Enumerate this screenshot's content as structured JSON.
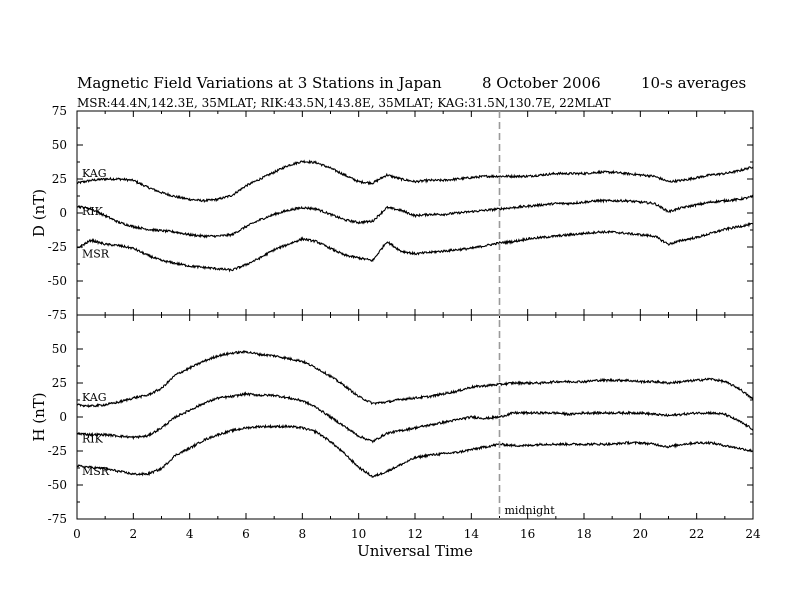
{
  "header": {
    "title": "Magnetic Field Variations at 3 Stations in Japan",
    "date": "8   October 2006",
    "averaging": "10-s averages",
    "subtitle": "MSR:44.4N,142.3E, 35MLAT;  RIK:43.5N,143.8E, 35MLAT;  KAG:31.5N,130.7E, 22MLAT"
  },
  "chart_data": [
    {
      "type": "line",
      "panel": "D",
      "ylabel": "D (nT)",
      "xlim": [
        0,
        24
      ],
      "ylim": [
        -75,
        75
      ],
      "yticks": [
        75,
        50,
        25,
        0,
        -25,
        -50,
        -75
      ],
      "series": [
        {
          "name": "KAG",
          "x": [
            0,
            0.5,
            1,
            1.5,
            2,
            2.5,
            3,
            3.5,
            4,
            4.5,
            5,
            5.5,
            6,
            6.5,
            7,
            7.5,
            8,
            8.5,
            9,
            9.5,
            10,
            10.5,
            11,
            11.5,
            12,
            12.5,
            13,
            13.5,
            14,
            14.5,
            15,
            15.5,
            16,
            16.5,
            17,
            17.5,
            18,
            18.5,
            19,
            19.5,
            20,
            20.5,
            21,
            21.5,
            22,
            22.5,
            23,
            23.5,
            24
          ],
          "values": [
            22,
            24,
            25,
            25,
            24,
            19,
            15,
            12,
            10,
            9,
            10,
            13,
            20,
            25,
            30,
            35,
            38,
            37,
            33,
            28,
            23,
            22,
            28,
            25,
            23,
            24,
            24,
            25,
            26,
            27,
            27,
            27,
            27,
            28,
            29,
            29,
            29,
            30,
            30,
            29,
            28,
            27,
            23,
            24,
            26,
            28,
            29,
            31,
            34
          ]
        },
        {
          "name": "RIK",
          "x": [
            0,
            0.5,
            1,
            1.5,
            2,
            2.5,
            3,
            3.5,
            4,
            4.5,
            5,
            5.5,
            6,
            6.5,
            7,
            7.5,
            8,
            8.5,
            9,
            9.5,
            10,
            10.5,
            11,
            11.5,
            12,
            12.5,
            13,
            13.5,
            14,
            14.5,
            15,
            15.5,
            16,
            16.5,
            17,
            17.5,
            18,
            18.5,
            19,
            19.5,
            20,
            20.5,
            21,
            21.5,
            22,
            22.5,
            23,
            23.5,
            24
          ],
          "values": [
            5,
            3,
            -2,
            -7,
            -10,
            -12,
            -13,
            -14,
            -16,
            -17,
            -17,
            -16,
            -10,
            -5,
            -1,
            2,
            4,
            3,
            -1,
            -5,
            -7,
            -6,
            4,
            2,
            -2,
            -1,
            -1,
            0,
            1,
            2,
            3,
            4,
            5,
            6,
            7,
            7,
            8,
            9,
            9,
            9,
            8,
            7,
            1,
            4,
            6,
            8,
            9,
            10,
            12
          ]
        },
        {
          "name": "MSR",
          "x": [
            0,
            0.5,
            1,
            1.5,
            2,
            2.5,
            3,
            3.5,
            4,
            4.5,
            5,
            5.5,
            6,
            6.5,
            7,
            7.5,
            8,
            8.5,
            9,
            9.5,
            10,
            10.5,
            11,
            11.5,
            12,
            12.5,
            13,
            13.5,
            14,
            14.5,
            15,
            15.5,
            16,
            16.5,
            17,
            17.5,
            18,
            18.5,
            19,
            19.5,
            20,
            20.5,
            21,
            21.5,
            22,
            22.5,
            23,
            23.5,
            24
          ],
          "values": [
            -26,
            -20,
            -23,
            -24,
            -26,
            -31,
            -35,
            -37,
            -39,
            -40,
            -41,
            -42,
            -38,
            -33,
            -27,
            -23,
            -19,
            -21,
            -26,
            -31,
            -33,
            -35,
            -21,
            -28,
            -30,
            -29,
            -28,
            -27,
            -26,
            -24,
            -22,
            -21,
            -19,
            -18,
            -17,
            -16,
            -15,
            -14,
            -14,
            -15,
            -16,
            -17,
            -23,
            -20,
            -18,
            -15,
            -12,
            -10,
            -8
          ]
        }
      ]
    },
    {
      "type": "line",
      "panel": "H",
      "ylabel": "H (nT)",
      "xlabel": "Universal Time",
      "xlim": [
        0,
        24
      ],
      "xticks": [
        0,
        2,
        4,
        6,
        8,
        10,
        12,
        14,
        16,
        18,
        20,
        22,
        24
      ],
      "ylim": [
        -75,
        75
      ],
      "yticks": [
        50,
        25,
        0,
        -25,
        -50,
        -75
      ],
      "series": [
        {
          "name": "KAG",
          "x": [
            0,
            0.5,
            1,
            1.5,
            2,
            2.5,
            3,
            3.5,
            4,
            4.5,
            5,
            5.5,
            6,
            6.5,
            7,
            7.5,
            8,
            8.5,
            9,
            9.5,
            10,
            10.5,
            11,
            11.5,
            12,
            12.5,
            13,
            13.5,
            14,
            14.5,
            15,
            15.5,
            16,
            16.5,
            17,
            17.5,
            18,
            18.5,
            19,
            19.5,
            20,
            20.5,
            21,
            21.5,
            22,
            22.5,
            23,
            23.5,
            24
          ],
          "values": [
            9,
            8,
            9,
            11,
            14,
            16,
            21,
            31,
            36,
            41,
            45,
            47,
            48,
            46,
            45,
            43,
            41,
            36,
            30,
            23,
            15,
            10,
            11,
            13,
            14,
            15,
            17,
            19,
            22,
            23,
            24,
            25,
            25,
            25,
            26,
            26,
            26,
            27,
            27,
            27,
            26,
            26,
            25,
            26,
            27,
            28,
            26,
            21,
            13
          ]
        },
        {
          "name": "RIK",
          "x": [
            0,
            0.5,
            1,
            1.5,
            2,
            2.5,
            3,
            3.5,
            4,
            4.5,
            5,
            5.5,
            6,
            6.5,
            7,
            7.5,
            8,
            8.5,
            9,
            9.5,
            10,
            10.5,
            11,
            11.5,
            12,
            12.5,
            13,
            13.5,
            14,
            14.5,
            15,
            15.5,
            16,
            16.5,
            17,
            17.5,
            18,
            18.5,
            19,
            19.5,
            20,
            20.5,
            21,
            21.5,
            22,
            22.5,
            23,
            23.5,
            24
          ],
          "values": [
            -12,
            -13,
            -13,
            -14,
            -15,
            -14,
            -8,
            0,
            5,
            10,
            14,
            15,
            17,
            16,
            16,
            14,
            12,
            7,
            0,
            -7,
            -14,
            -18,
            -12,
            -10,
            -8,
            -6,
            -4,
            -2,
            0,
            -1,
            0,
            3,
            3,
            3,
            3,
            2,
            3,
            3,
            3,
            3,
            3,
            2,
            1,
            2,
            3,
            3,
            2,
            -3,
            -9
          ]
        },
        {
          "name": "MSR",
          "x": [
            0,
            0.5,
            1,
            1.5,
            2,
            2.5,
            3,
            3.5,
            4,
            4.5,
            5,
            5.5,
            6,
            6.5,
            7,
            7.5,
            8,
            8.5,
            9,
            9.5,
            10,
            10.5,
            11,
            11.5,
            12,
            12.5,
            13,
            13.5,
            14,
            14.5,
            15,
            15.5,
            16,
            16.5,
            17,
            17.5,
            18,
            18.5,
            19,
            19.5,
            20,
            20.5,
            21,
            21.5,
            22,
            22.5,
            23,
            23.5,
            24
          ],
          "values": [
            -36,
            -37,
            -38,
            -40,
            -42,
            -42,
            -38,
            -28,
            -23,
            -17,
            -13,
            -10,
            -8,
            -7,
            -7,
            -7,
            -8,
            -11,
            -18,
            -27,
            -37,
            -44,
            -40,
            -35,
            -30,
            -28,
            -27,
            -26,
            -24,
            -22,
            -20,
            -21,
            -21,
            -20,
            -20,
            -20,
            -20,
            -20,
            -20,
            -19,
            -19,
            -20,
            -22,
            -20,
            -19,
            -19,
            -21,
            -23,
            -25
          ]
        }
      ]
    }
  ],
  "annotations": {
    "midnight_label": "midnight",
    "midnight_ut": 15
  }
}
